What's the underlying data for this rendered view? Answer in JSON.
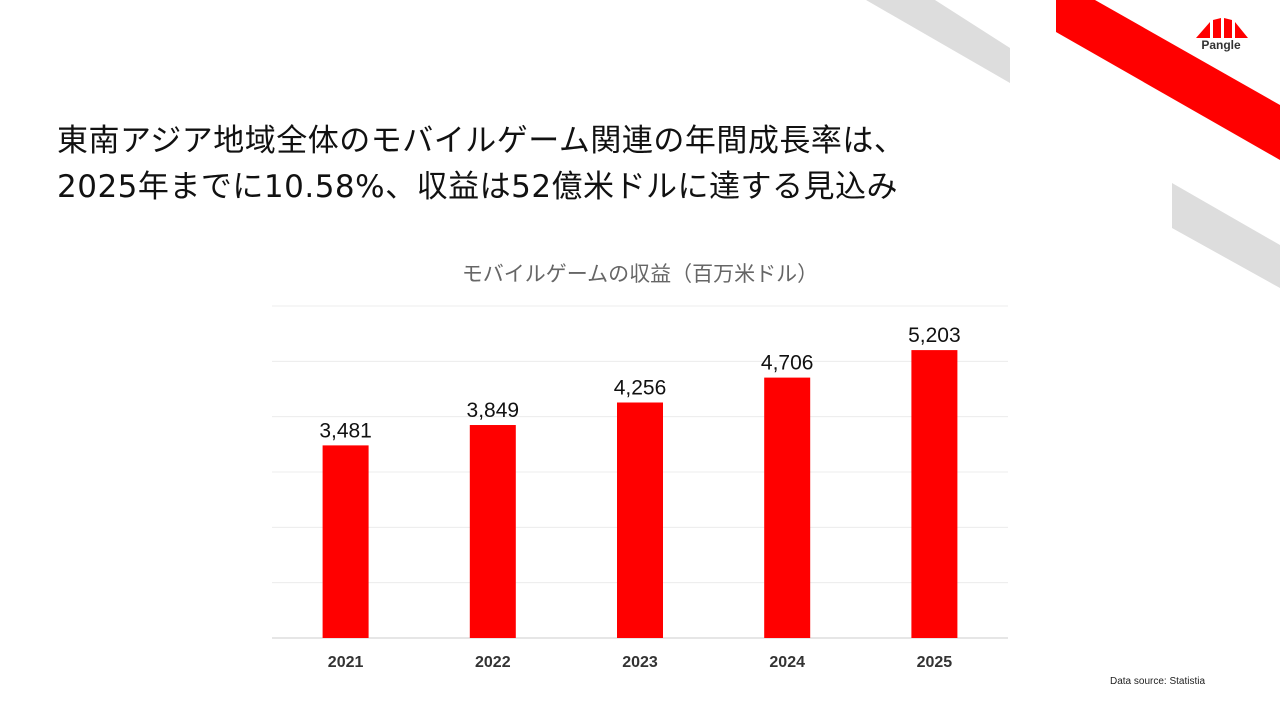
{
  "brand": {
    "logo_text": "Pangle",
    "accent": "#ff0000",
    "decor_gray": "#dddddd"
  },
  "heading": {
    "line1": "東南アジア地域全体のモバイルゲーム関連の年間成長率は、",
    "line2": "2025年までに10.58%、収益は52億米ドルに達する見込み"
  },
  "chart_data": {
    "type": "bar",
    "title": "モバイルゲームの収益（百万米ドル）",
    "categories": [
      "2021",
      "2022",
      "2023",
      "2024",
      "2025"
    ],
    "values": [
      3481,
      3849,
      4256,
      4706,
      5203
    ],
    "value_labels": [
      "3,481",
      "3,849",
      "4,256",
      "4,706",
      "5,203"
    ],
    "ylim": [
      0,
      6000
    ],
    "grid": true,
    "bar_color": "#ff0000"
  },
  "footer": {
    "source": "Data source: Statistia"
  }
}
